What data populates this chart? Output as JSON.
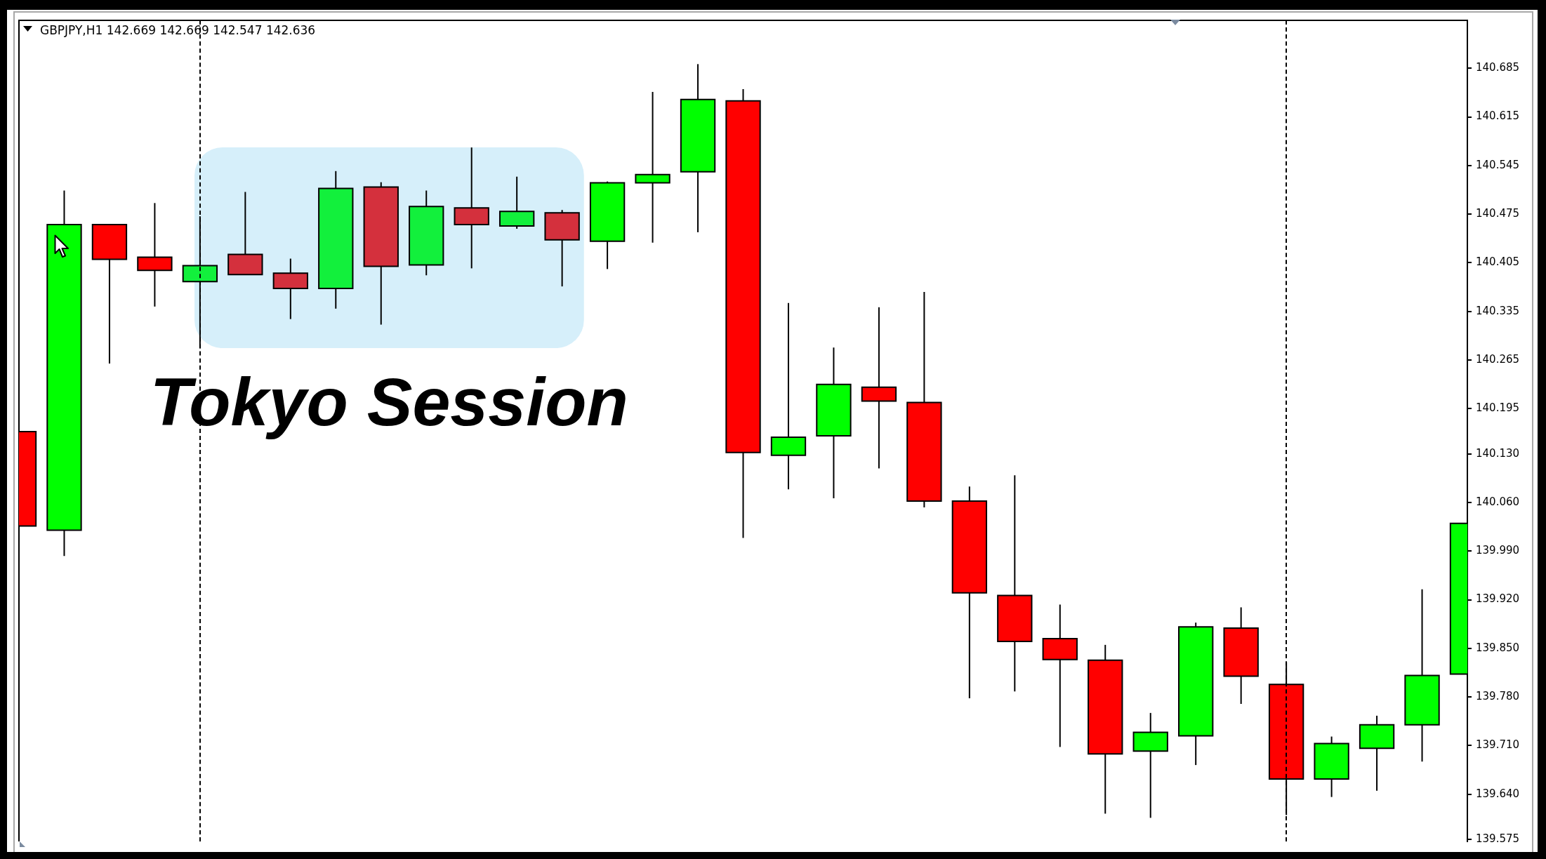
{
  "chart_data": {
    "type": "candlestick",
    "title": "GBPJPY,H1 142.669 142.669 142.547 142.636",
    "categories": [
      null,
      null,
      null,
      null,
      null,
      null,
      null,
      null,
      null,
      null,
      null,
      null,
      null,
      null,
      null,
      null,
      null,
      null,
      null,
      null,
      null,
      null,
      null,
      null,
      null,
      null,
      null,
      null,
      null,
      null,
      null,
      null,
      null
    ],
    "ohlc": [
      [
        140.162,
        140.213,
        140.026,
        140.026
      ],
      [
        140.02,
        140.509,
        139.983,
        140.46
      ],
      [
        140.46,
        140.46,
        140.26,
        140.41
      ],
      [
        140.413,
        140.491,
        140.342,
        140.394
      ],
      [
        140.378,
        140.472,
        140.282,
        140.401
      ],
      [
        140.417,
        140.507,
        140.388,
        140.388
      ],
      [
        140.39,
        140.411,
        140.324,
        140.368
      ],
      [
        140.368,
        140.537,
        140.339,
        140.512
      ],
      [
        140.514,
        140.521,
        140.316,
        140.4
      ],
      [
        140.402,
        140.509,
        140.387,
        140.486
      ],
      [
        140.484,
        140.571,
        140.397,
        140.46
      ],
      [
        140.458,
        140.529,
        140.454,
        140.479
      ],
      [
        140.477,
        140.481,
        140.371,
        140.438
      ],
      [
        140.436,
        140.522,
        140.396,
        140.52
      ],
      [
        140.52,
        140.651,
        140.434,
        140.532
      ],
      [
        140.536,
        140.691,
        140.449,
        140.64
      ],
      [
        140.638,
        140.655,
        140.009,
        140.132
      ],
      [
        140.128,
        140.347,
        140.079,
        140.154
      ],
      [
        140.156,
        140.283,
        140.066,
        140.23
      ],
      [
        140.226,
        140.341,
        140.109,
        140.206
      ],
      [
        140.204,
        140.363,
        140.053,
        140.062
      ],
      [
        140.062,
        140.083,
        139.778,
        139.93
      ],
      [
        139.926,
        140.099,
        139.788,
        139.86
      ],
      [
        139.864,
        139.913,
        139.708,
        139.834
      ],
      [
        139.833,
        139.855,
        139.612,
        139.698
      ],
      [
        139.702,
        139.757,
        139.606,
        139.729
      ],
      [
        139.724,
        139.887,
        139.682,
        139.881
      ],
      [
        139.879,
        139.909,
        139.77,
        139.81
      ],
      [
        139.798,
        139.83,
        139.61,
        139.662
      ],
      [
        139.662,
        139.723,
        139.636,
        139.713
      ],
      [
        139.706,
        139.753,
        139.645,
        139.74
      ],
      [
        139.74,
        139.935,
        139.687,
        139.811
      ],
      [
        139.813,
        140.057,
        139.755,
        140.03
      ]
    ],
    "colors": [
      "#ff0000",
      "#00ff00",
      "#ff0000",
      "#ff0000",
      "#12f03c",
      "#d4303d",
      "#d4303d",
      "#12f03c",
      "#d4303d",
      "#12f03c",
      "#d4303d",
      "#12f03c",
      "#d4303d",
      "#00ff00",
      "#00ff00",
      "#00ff00",
      "#ff0000",
      "#00ff00",
      "#00ff00",
      "#ff0000",
      "#ff0000",
      "#ff0000",
      "#ff0000",
      "#ff0000",
      "#ff0000",
      "#00ff00",
      "#00ff00",
      "#ff0000",
      "#ff0000",
      "#00ff00",
      "#00ff00",
      "#00ff00",
      "#00ff00"
    ],
    "ylim": [
      139.572,
      140.754
    ],
    "yticks": [
      139.575,
      {
        "value": 139.64,
        "label": "139.640"
      },
      {
        "value": 139.71,
        "label": "139.710"
      },
      {
        "value": 139.78,
        "label": "139.780"
      },
      {
        "value": 139.85,
        "label": "139.850"
      },
      {
        "value": 139.92,
        "label": "139.920"
      },
      {
        "value": 139.99,
        "label": "139.990"
      },
      {
        "value": 140.06,
        "label": "140.060"
      },
      {
        "value": 140.13,
        "label": "140.130"
      },
      140.195,
      140.265,
      140.335,
      140.405,
      140.475,
      140.545,
      140.615,
      140.685
    ],
    "annotations": [
      "Tokyo Session"
    ]
  }
}
